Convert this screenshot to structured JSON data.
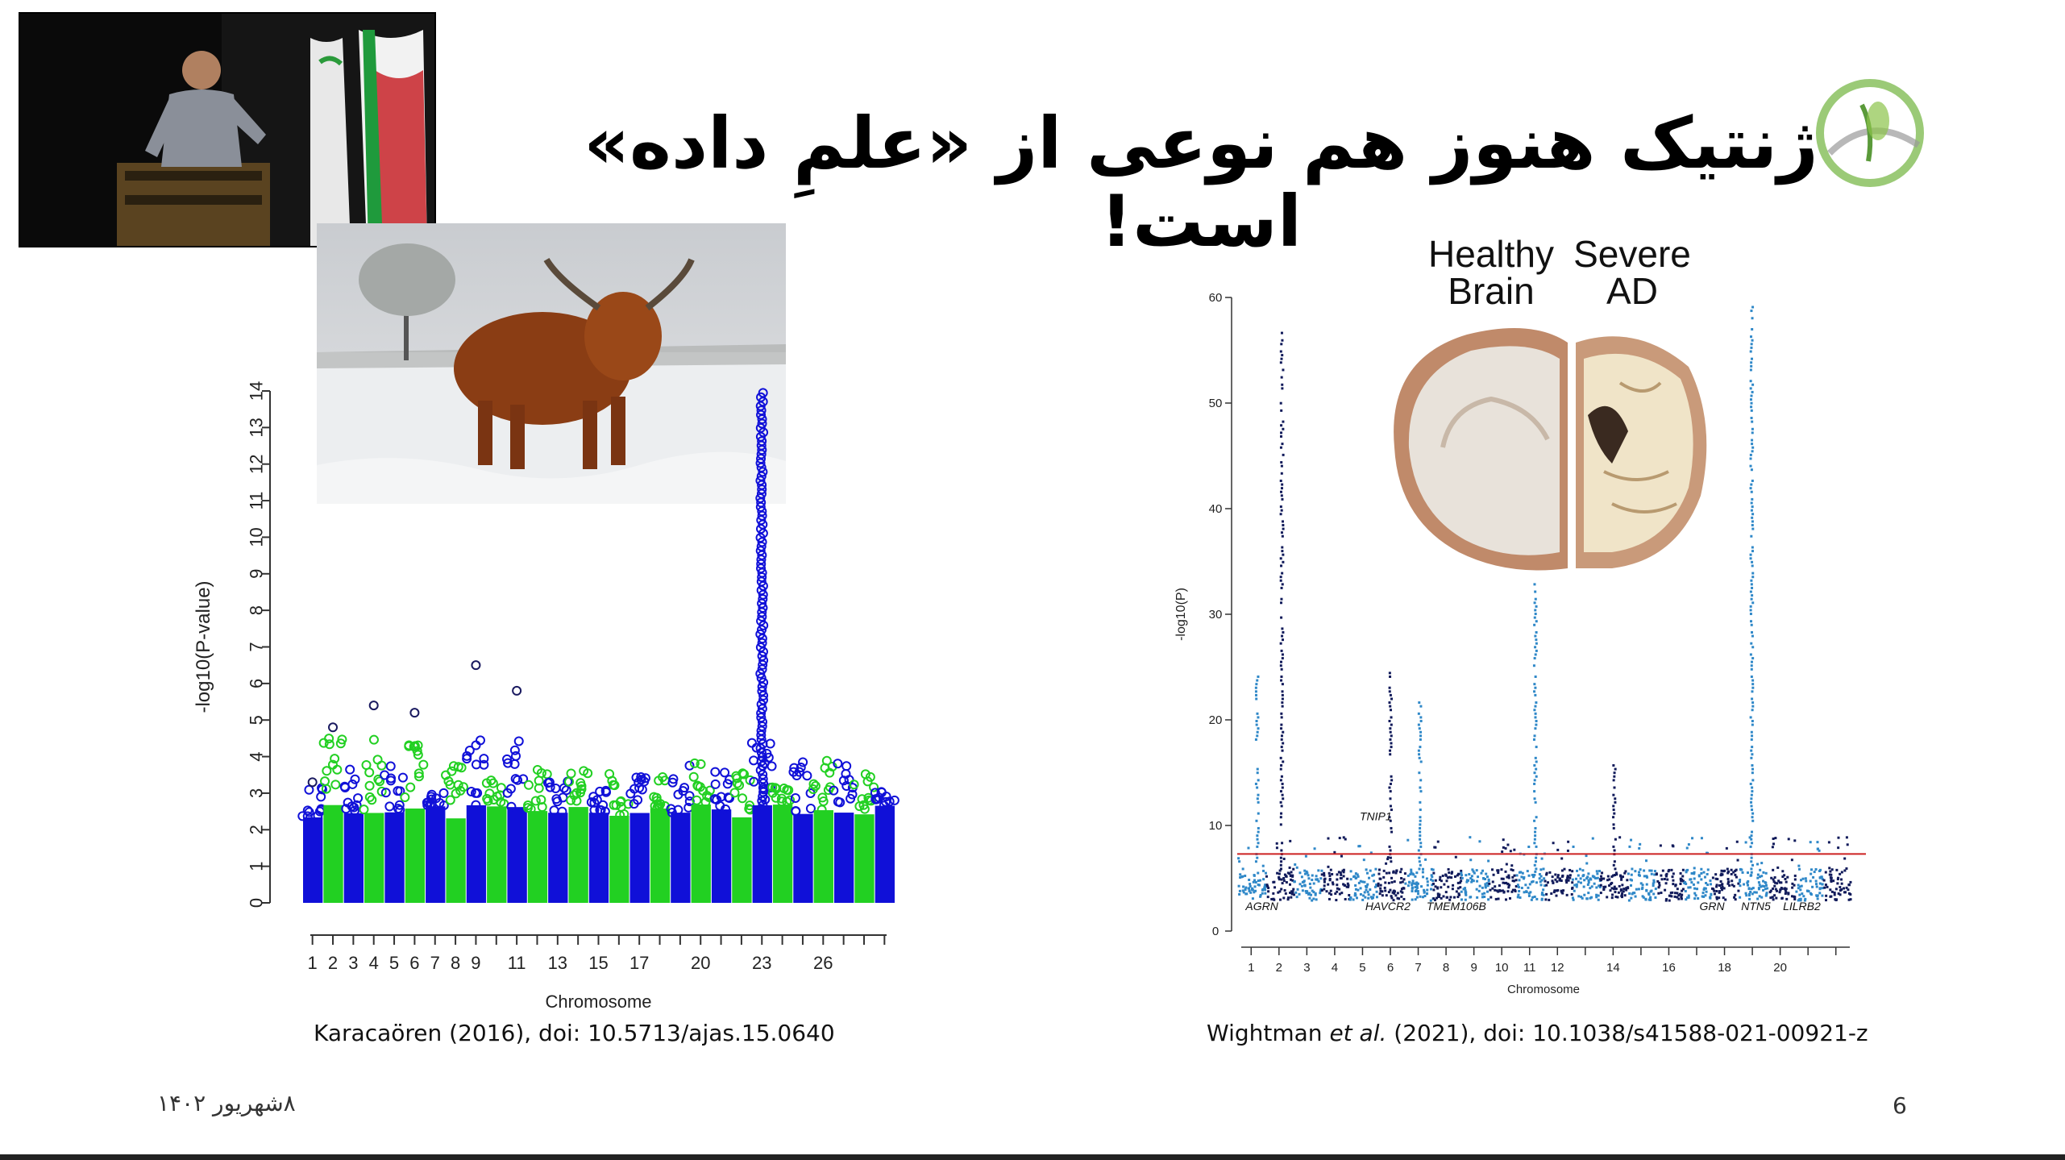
{
  "slide": {
    "title": "ژنتیک هنوز هم نوعی از «علمِ داده» است!",
    "date_footer": "۸شهریور ۱۴۰۲",
    "page_number": "6",
    "citation_left": "Karacaören (2016), doi: 10.5713/ajas.15.0640",
    "citation_right_prefix": "Wightman ",
    "citation_right_etal": "et al.",
    "citation_right_suffix": " (2021), doi: 10.1038/s41588-021-00921-z",
    "brain_labels": {
      "healthy": "Healthy Brain",
      "healthy_l1": "Healthy",
      "healthy_l2": "Brain",
      "severe_l1": "Severe",
      "severe_l2": "AD"
    }
  },
  "colors": {
    "left_odd": "#1010d8",
    "left_even": "#22d022",
    "right_dark": "#101a5a",
    "right_light": "#2f88c8",
    "threshold": "#cc2222"
  },
  "chart_data": [
    {
      "type": "scatter",
      "subtype": "manhattan",
      "xlabel": "Chromosome",
      "ylabel": "-log10(P-value)",
      "ylim": [
        0,
        14
      ],
      "yticks": [
        0,
        1,
        2,
        3,
        4,
        5,
        6,
        7,
        8,
        9,
        10,
        11,
        12,
        13,
        14
      ],
      "tick_labels": [
        "1",
        "2",
        "3",
        "4",
        "5",
        "6",
        "7",
        "8",
        "9",
        "11",
        "13",
        "15",
        "17",
        "20",
        "23",
        "26"
      ],
      "peaks": [
        {
          "chromosome": "1",
          "max": 3.3
        },
        {
          "chromosome": "2",
          "max": 4.8
        },
        {
          "chromosome": "4",
          "max": 5.4
        },
        {
          "chromosome": "6",
          "max": 5.2
        },
        {
          "chromosome": "9",
          "max": 6.5
        },
        {
          "chromosome": "11",
          "max": 5.8
        },
        {
          "chromosome": "23",
          "max": 14.0
        }
      ]
    },
    {
      "type": "scatter",
      "subtype": "manhattan",
      "xlabel": "Chromosome",
      "ylabel": "-log10(P)",
      "ylim": [
        0,
        60
      ],
      "yticks": [
        0,
        10,
        20,
        30,
        40,
        50,
        60
      ],
      "tick_labels": [
        "1",
        "2",
        "3",
        "4",
        "5",
        "6",
        "7",
        "8",
        "9",
        "10",
        "11",
        "12",
        "14",
        "16",
        "18",
        "20"
      ],
      "threshold": 7.3,
      "gene_labels": [
        "AGRN",
        "HAVCR2",
        "TMEM106B",
        "GRN",
        "NTN5",
        "LILRB2",
        "TNIP1"
      ],
      "peaks": [
        {
          "chromosome": "1",
          "max": 25
        },
        {
          "chromosome": "2",
          "max": 57
        },
        {
          "chromosome": "6",
          "max": 25
        },
        {
          "chromosome": "7",
          "max": 22
        },
        {
          "chromosome": "11",
          "max": 33
        },
        {
          "chromosome": "14",
          "max": 16
        },
        {
          "chromosome": "19",
          "max": 60
        }
      ]
    }
  ]
}
